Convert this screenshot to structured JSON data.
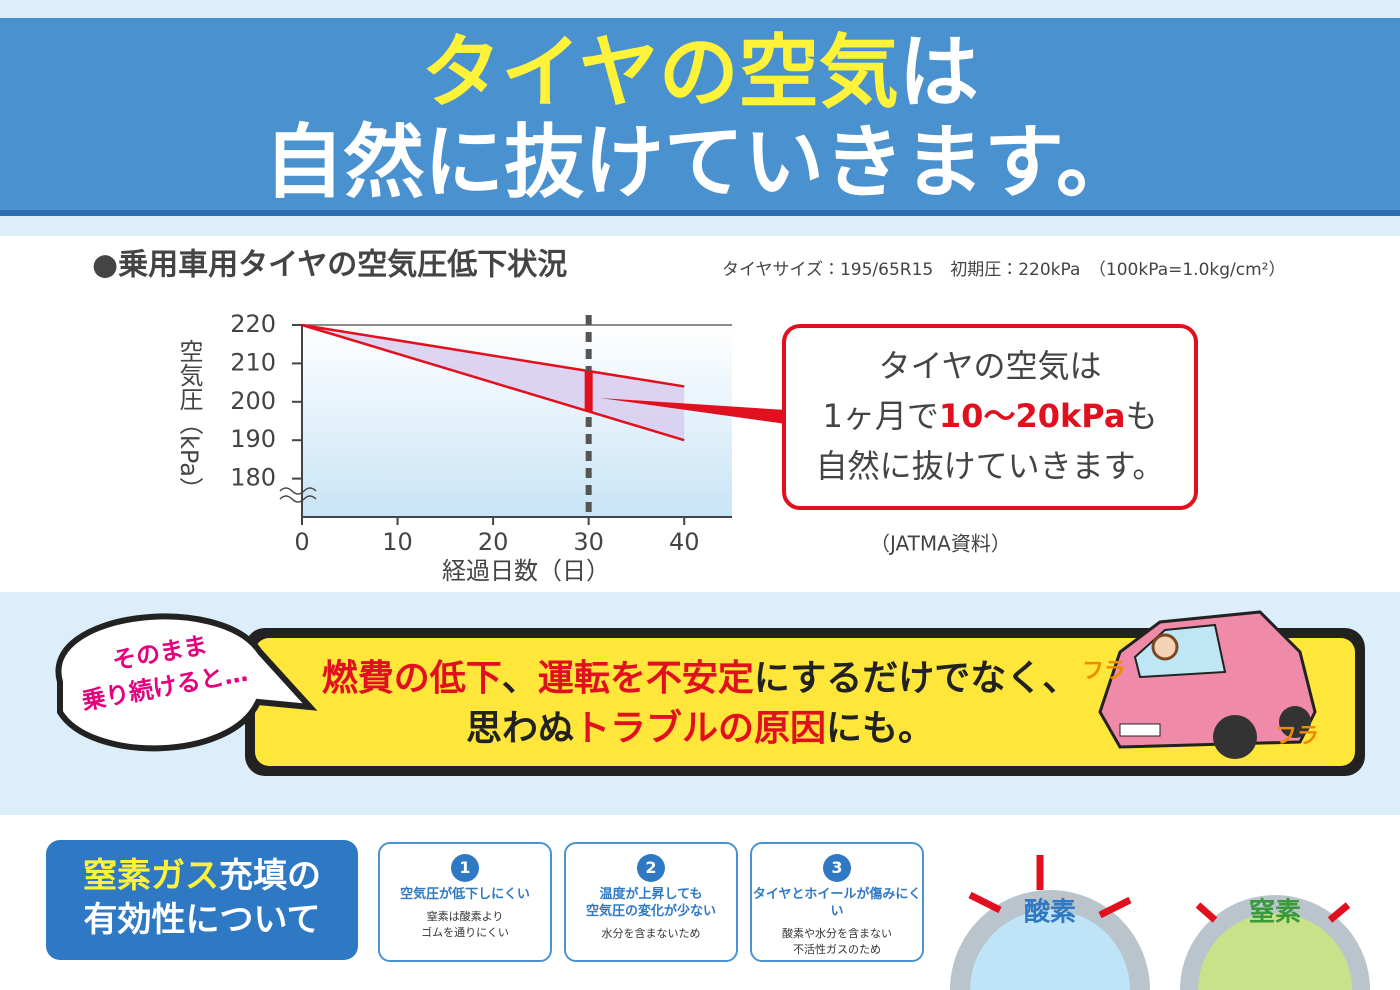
{
  "header": {
    "line1_highlight": "タイヤの空気",
    "line1_rest": "は",
    "line2": "自然に抜けていきます。"
  },
  "chart_data": {
    "type": "line",
    "title": "●乗用車用タイヤの空気圧低下状況",
    "subtitle": "タイヤサイズ：195/65R15　初期圧：220kPa　（100kPa=1.0kg/cm²）",
    "y_label": "空気圧（kPa）",
    "x_label": "経過日数（日）",
    "source": "（JATMA資料）",
    "x": [
      0,
      40
    ],
    "series": [
      {
        "values": [
          220,
          204
        ],
        "color": "#e0101e"
      },
      {
        "values": [
          220,
          190
        ],
        "color": "#e0101e"
      }
    ],
    "xlim": [
      0,
      45
    ],
    "xticks": [
      0,
      10,
      20,
      30,
      40
    ],
    "ylim": [
      170,
      220
    ],
    "yticks": [
      180,
      190,
      200,
      210,
      220
    ],
    "marker_x": 30,
    "grid": false
  },
  "callout": {
    "line1": "タイヤの空気は",
    "line2_pre": "1ヶ月で",
    "line2_highlight": "10〜20kPa",
    "line2_post": "も",
    "line3": "自然に抜けていきます。"
  },
  "banner": {
    "bubble": [
      "そのまま",
      "乗り続けると…"
    ],
    "line1": [
      {
        "text": "燃費の低下",
        "red": true
      },
      {
        "text": "、",
        "red": false
      },
      {
        "text": "運転を不安定",
        "red": true
      },
      {
        "text": "にするだけでなく、",
        "red": false
      }
    ],
    "line2": [
      {
        "text": "思わぬ",
        "red": false
      },
      {
        "text": "トラブルの原因",
        "red": true
      },
      {
        "text": "にも。",
        "red": false
      }
    ],
    "sound": [
      "フラ",
      "フラ"
    ]
  },
  "nitrogen": {
    "title_highlight": "窒素ガス",
    "title_rest": "充填の",
    "title_line2": "有効性について",
    "cards": [
      {
        "num": "1",
        "title": "空気圧が低下しにくい",
        "desc": [
          "窒素は酸素より",
          "ゴムを通りにくい"
        ]
      },
      {
        "num": "2",
        "title": "温度が上昇しても\n空気圧の変化が少ない",
        "desc": [
          "水分を含まないため"
        ]
      },
      {
        "num": "3",
        "title": "タイヤとホイールが傷みにくい",
        "desc": [
          "酸素や水分を含まない",
          "不活性ガスのため"
        ]
      }
    ],
    "oxygen_label": "酸素",
    "nitrogen_label": "窒素"
  }
}
